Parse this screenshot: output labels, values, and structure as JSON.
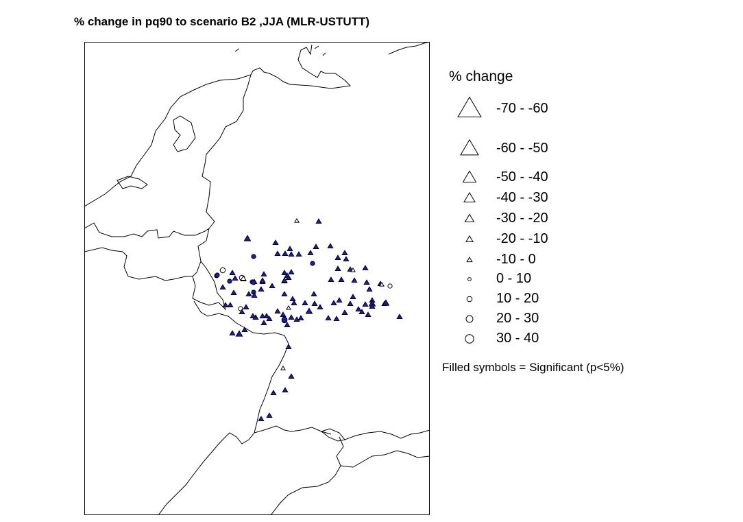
{
  "title": "% change in pq90 to scenario B2 ,JJA (MLR-USTUTT)",
  "legend": {
    "heading": "% change",
    "items": [
      {
        "label": "-70 - -60",
        "shape": "triangle"
      },
      {
        "label": "-60 - -50",
        "shape": "triangle"
      },
      {
        "label": "-50 - -40",
        "shape": "triangle"
      },
      {
        "label": "-40 - -30",
        "shape": "triangle"
      },
      {
        "label": "-30 - -20",
        "shape": "triangle"
      },
      {
        "label": "-20 - -10",
        "shape": "triangle"
      },
      {
        "label": "-10 - 0",
        "shape": "triangle"
      },
      {
        "label": "0 - 10",
        "shape": "circle"
      },
      {
        "label": "10 - 20",
        "shape": "circle"
      },
      {
        "label": "20 - 30",
        "shape": "circle"
      },
      {
        "label": "30 - 40",
        "shape": "circle"
      }
    ],
    "note": "Filled symbols = Significant (p<5%)"
  },
  "colors": {
    "significant_fill": "#1a1acc",
    "symbol_stroke": "#000000",
    "border_line": "#000000"
  },
  "map_data": {
    "stations": [
      {
        "cls": 6,
        "sig": false
      },
      {
        "cls": 5,
        "sig": true
      },
      {
        "cls": 4,
        "sig": true
      },
      {
        "cls": 5,
        "sig": true
      },
      {
        "cls": 5,
        "sig": true
      },
      {
        "cls": 5,
        "sig": true
      },
      {
        "cls": 8,
        "sig": true
      },
      {
        "cls": 5,
        "sig": true
      },
      {
        "cls": 5,
        "sig": true
      },
      {
        "cls": 5,
        "sig": true
      },
      {
        "cls": 5,
        "sig": true
      },
      {
        "cls": 5,
        "sig": true
      },
      {
        "cls": 5,
        "sig": true
      },
      {
        "cls": 5,
        "sig": true
      },
      {
        "cls": 5,
        "sig": true
      },
      {
        "cls": 5,
        "sig": true
      },
      {
        "cls": 5,
        "sig": true
      },
      {
        "cls": 8,
        "sig": true
      },
      {
        "cls": 5,
        "sig": true
      },
      {
        "cls": 5,
        "sig": true
      },
      {
        "cls": 8,
        "sig": true
      },
      {
        "cls": 5,
        "sig": true
      },
      {
        "cls": 5,
        "sig": true
      },
      {
        "cls": 5,
        "sig": true
      },
      {
        "cls": 9,
        "sig": false
      },
      {
        "cls": 8,
        "sig": true
      },
      {
        "cls": 5,
        "sig": true
      },
      {
        "cls": 8,
        "sig": true
      },
      {
        "cls": 5,
        "sig": true
      },
      {
        "cls": 5,
        "sig": true
      },
      {
        "cls": 5,
        "sig": true
      },
      {
        "cls": 5,
        "sig": true
      },
      {
        "cls": 5,
        "sig": true
      },
      {
        "cls": 6,
        "sig": false
      },
      {
        "cls": 5,
        "sig": true
      },
      {
        "cls": 8,
        "sig": true
      },
      {
        "cls": 9,
        "sig": false
      },
      {
        "cls": 5,
        "sig": false
      },
      {
        "cls": 8,
        "sig": true
      },
      {
        "cls": 5,
        "sig": true
      },
      {
        "cls": 5,
        "sig": true
      },
      {
        "cls": 5,
        "sig": true
      },
      {
        "cls": 5,
        "sig": true
      },
      {
        "cls": 5,
        "sig": true
      },
      {
        "cls": 5,
        "sig": true
      },
      {
        "cls": 5,
        "sig": true
      },
      {
        "cls": 5,
        "sig": true
      },
      {
        "cls": 5,
        "sig": true
      },
      {
        "cls": 6,
        "sig": false
      },
      {
        "cls": 8,
        "sig": false
      },
      {
        "cls": 8,
        "sig": true
      },
      {
        "cls": 5,
        "sig": true
      },
      {
        "cls": 5,
        "sig": true
      },
      {
        "cls": 5,
        "sig": true
      },
      {
        "cls": 5,
        "sig": true
      },
      {
        "cls": 5,
        "sig": true
      },
      {
        "cls": 5,
        "sig": true
      },
      {
        "cls": 5,
        "sig": true
      },
      {
        "cls": 5,
        "sig": true
      },
      {
        "cls": 5,
        "sig": true
      },
      {
        "cls": 5,
        "sig": true
      },
      {
        "cls": 5,
        "sig": true
      },
      {
        "cls": 5,
        "sig": true
      },
      {
        "cls": 5,
        "sig": true
      },
      {
        "cls": 5,
        "sig": true
      },
      {
        "cls": 5,
        "sig": true
      },
      {
        "cls": 6,
        "sig": false
      },
      {
        "cls": 5,
        "sig": true
      },
      {
        "cls": 5,
        "sig": true
      },
      {
        "cls": 5,
        "sig": true
      },
      {
        "cls": 5,
        "sig": true
      },
      {
        "cls": 5,
        "sig": true
      },
      {
        "cls": 5,
        "sig": true
      },
      {
        "cls": 4,
        "sig": true
      },
      {
        "cls": 5,
        "sig": true
      },
      {
        "cls": 5,
        "sig": true
      },
      {
        "cls": 5,
        "sig": true
      },
      {
        "cls": 8,
        "sig": false
      },
      {
        "cls": 5,
        "sig": true
      },
      {
        "cls": 5,
        "sig": true
      },
      {
        "cls": 5,
        "sig": true
      },
      {
        "cls": 5,
        "sig": true
      },
      {
        "cls": 5,
        "sig": true
      },
      {
        "cls": 9,
        "sig": true
      },
      {
        "cls": 5,
        "sig": true
      },
      {
        "cls": 5,
        "sig": true
      },
      {
        "cls": 4,
        "sig": true
      },
      {
        "cls": 5,
        "sig": true
      },
      {
        "cls": 5,
        "sig": true
      },
      {
        "cls": 5,
        "sig": true
      },
      {
        "cls": 5,
        "sig": true
      },
      {
        "cls": 5,
        "sig": true
      },
      {
        "cls": 5,
        "sig": true
      },
      {
        "cls": 4,
        "sig": true
      },
      {
        "cls": 5,
        "sig": true
      },
      {
        "cls": 5,
        "sig": true
      },
      {
        "cls": 5,
        "sig": true
      },
      {
        "cls": 5,
        "sig": true
      },
      {
        "cls": 5,
        "sig": true
      },
      {
        "cls": 5,
        "sig": true
      },
      {
        "cls": 5,
        "sig": true
      },
      {
        "cls": 5,
        "sig": true
      },
      {
        "cls": 4,
        "sig": true
      },
      {
        "cls": 5,
        "sig": true
      },
      {
        "cls": 5,
        "sig": true
      },
      {
        "cls": 9,
        "sig": true
      },
      {
        "cls": 5,
        "sig": true
      },
      {
        "cls": 6,
        "sig": false
      },
      {
        "cls": 5,
        "sig": true
      },
      {
        "cls": 5,
        "sig": true
      },
      {
        "cls": 5,
        "sig": true
      },
      {
        "cls": 5,
        "sig": true
      },
      {
        "cls": 5,
        "sig": true
      }
    ]
  }
}
